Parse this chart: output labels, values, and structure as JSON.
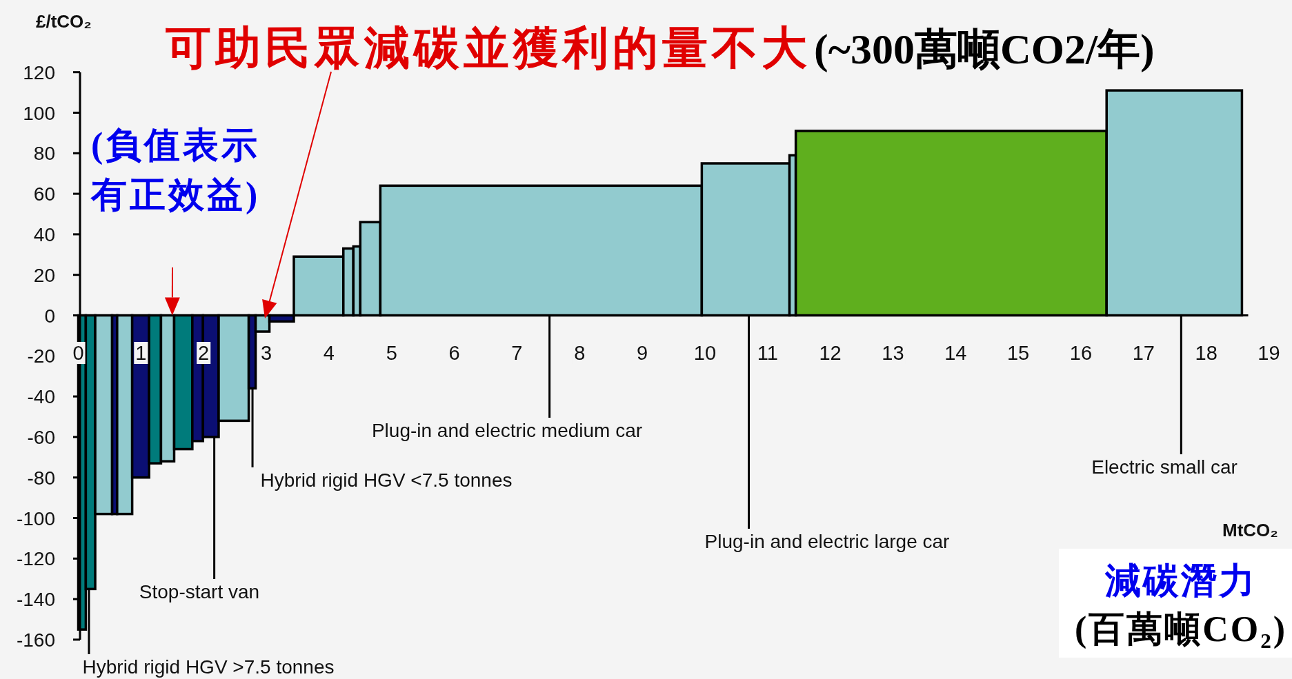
{
  "chart_data": {
    "type": "histogram",
    "ylabel": "£/tCO₂",
    "xlabel": "MtCO₂",
    "bins": [
      0,
      0.12,
      0.27,
      0.54,
      0.62,
      0.86,
      1.13,
      1.32,
      1.53,
      1.82,
      1.99,
      2.24,
      2.72,
      2.83,
      3.05,
      3.44,
      4.23,
      4.39,
      4.5,
      4.82,
      9.95,
      11.35,
      11.45,
      16.41,
      18.57
    ],
    "values": [
      -155,
      -135,
      -98,
      -98,
      -98,
      -80,
      -73,
      -72,
      -66,
      -62,
      -60,
      -52,
      -36,
      -8,
      -3,
      29,
      33,
      34,
      46,
      64,
      75,
      79,
      91,
      111
    ],
    "colors": [
      "#007b7b",
      "#007b7b",
      "#92cbcf",
      "#0b0f73",
      "#92cbcf",
      "#0b0f73",
      "#007b7b",
      "#92cbcf",
      "#007b7b",
      "#0b0f73",
      "#0b0f73",
      "#92cbcf",
      "#0b0f73",
      "#92cbcf",
      "#0b0f73",
      "#92cbcf",
      "#92cbcf",
      "#92cbcf",
      "#92cbcf",
      "#92cbcf",
      "#92cbcf",
      "#92cbcf",
      "#5faf1e",
      "#92cbcf"
    ],
    "xlim": [
      0,
      19
    ],
    "xticks": [
      0,
      1,
      2,
      3,
      4,
      5,
      6,
      7,
      8,
      9,
      10,
      11,
      12,
      13,
      14,
      15,
      16,
      17,
      18,
      19
    ],
    "ylim": [
      -160,
      120
    ],
    "yticks": [
      -160,
      -140,
      -120,
      -100,
      -80,
      -60,
      -40,
      -20,
      0,
      20,
      40,
      60,
      80,
      100,
      120
    ],
    "annotations": [
      "可助民眾減碳並獲利的量不大",
      "(~300萬噸CO2/年)",
      {
        "text": "(負值表示有正效益)",
        "x": 1.5,
        "y": 0
      },
      {
        "text": "Plug-in and electric medium car",
        "x": 7.52,
        "y": 0
      },
      {
        "text": "Plug-in and electric large car",
        "x": 10.7,
        "y": 0
      },
      {
        "text": "Electric small car",
        "x": 17.6,
        "y": 0
      },
      {
        "text": "Hybrid rigid HGV <7.5 tonnes",
        "x": 2.78,
        "y": -36
      },
      {
        "text": "Stop-start van",
        "x": 2.17,
        "y": -60
      },
      {
        "text": "Hybrid rigid HGV >7.5 tonnes",
        "x": 0.17,
        "y": -135
      },
      "減碳潛力",
      "(百萬噸CO₂)"
    ]
  }
}
